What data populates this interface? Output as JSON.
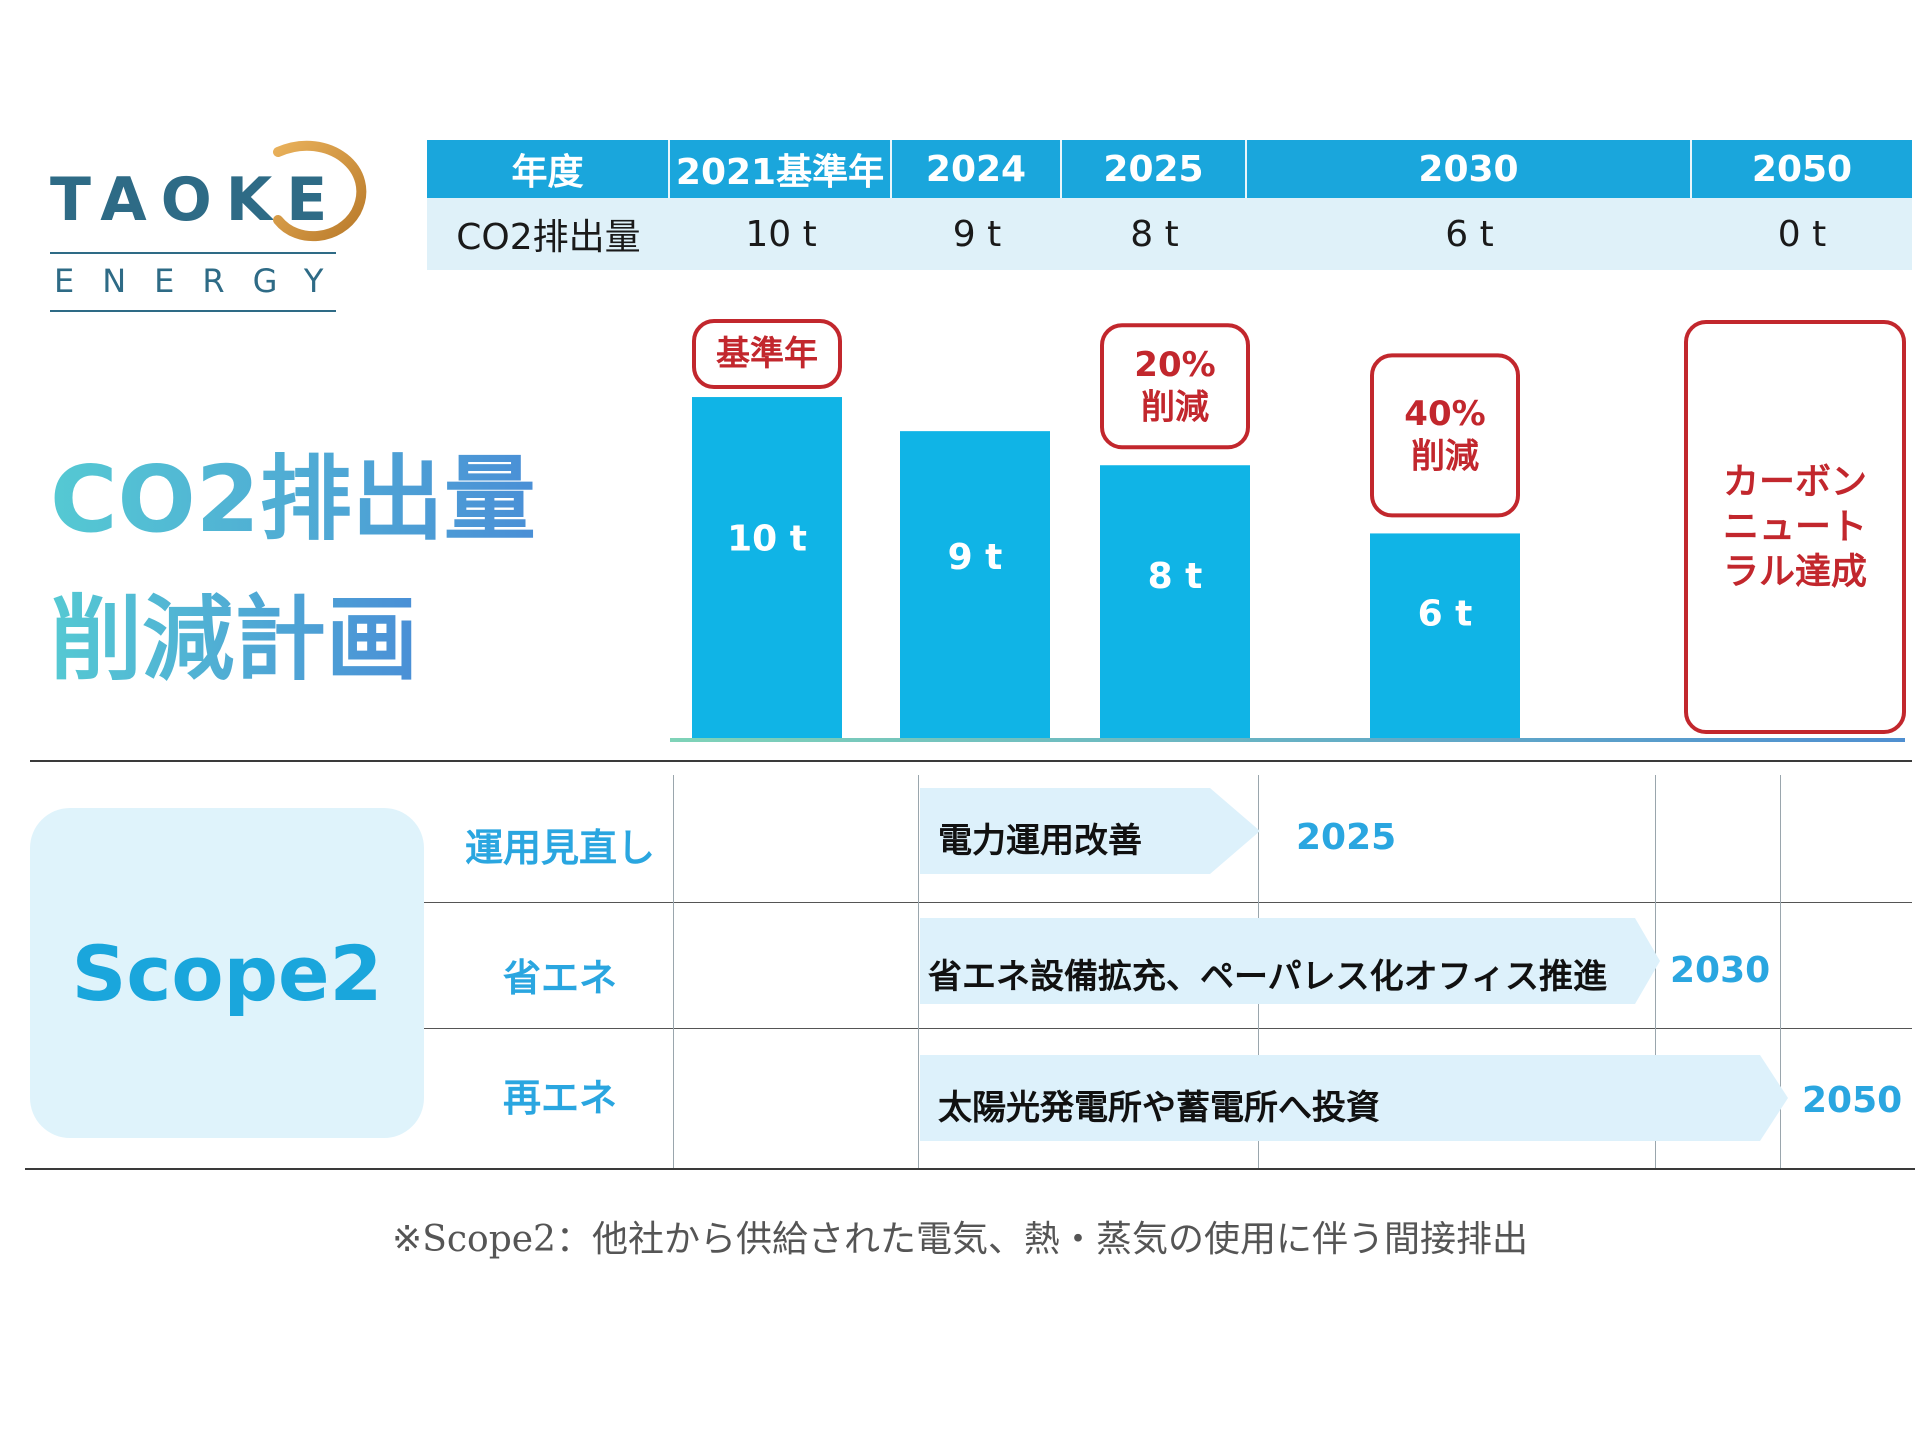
{
  "logo": {
    "word": "TAOKE",
    "sub": "ENERGY"
  },
  "title": {
    "line1": "CO2排出量",
    "line2": "削減計画"
  },
  "table": {
    "header_label": "年度",
    "row_label": "CO2排出量",
    "years": [
      "2021基準年",
      "2024",
      "2025",
      "2030",
      "2050"
    ],
    "values": [
      "10 t",
      "9 t",
      "8 t",
      "6 t",
      "0 t"
    ]
  },
  "chart_data": {
    "type": "bar",
    "categories": [
      "2021",
      "2024",
      "2025",
      "2030",
      "2050"
    ],
    "values": [
      10,
      9,
      8,
      6,
      0
    ],
    "unit": "t",
    "bar_labels": [
      "10 t",
      "9 t",
      "8 t",
      "6 t",
      ""
    ],
    "ylim": [
      0,
      10.5
    ],
    "annotations": [
      {
        "category": "2021",
        "lines": [
          "基準年"
        ]
      },
      {
        "category": "2025",
        "lines": [
          "20%",
          "削減"
        ]
      },
      {
        "category": "2030",
        "lines": [
          "40%",
          "削減"
        ]
      },
      {
        "category": "2050",
        "lines": [
          "カーボン",
          "ニュート",
          "ラル達成"
        ]
      }
    ],
    "colors": {
      "bar": "#10b4e6",
      "callout": "#c2272d",
      "baseline": "#4fb0c8"
    }
  },
  "scope": {
    "title": "Scope2",
    "rows": [
      {
        "label": "運用見直し",
        "action": "電力運用改善",
        "target_year": "2025"
      },
      {
        "label": "省エネ",
        "action": "省エネ設備拡充、ペーパレス化オフィス推進",
        "target_year": "2030"
      },
      {
        "label": "再エネ",
        "action": "太陽光発電所や蓄電所へ投資",
        "target_year": "2050"
      }
    ]
  },
  "footnote": "※Scope2：他社から供給された電気、熱・蒸気の使用に伴う間接排出"
}
